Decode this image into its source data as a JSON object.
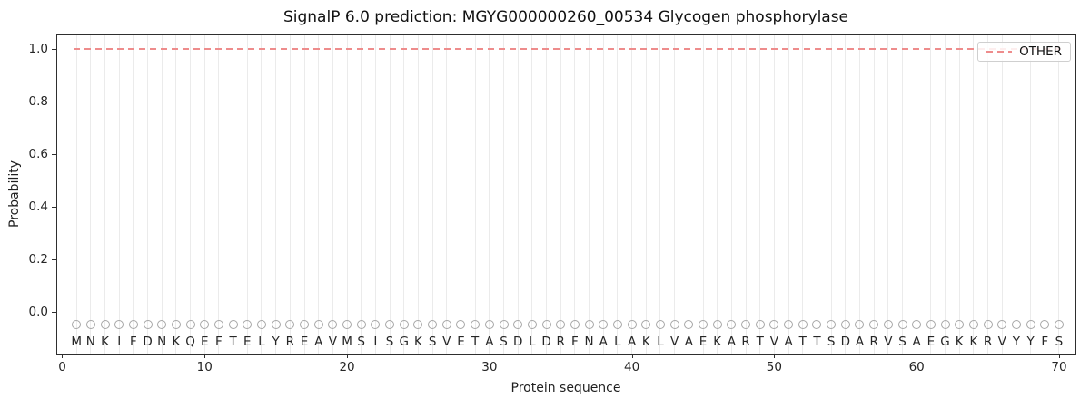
{
  "chart_data": {
    "type": "line",
    "title": "SignalP 6.0 prediction: MGYG000000260_00534 Glycogen phosphorylase",
    "xlabel": "Protein sequence",
    "ylabel": "Probability",
    "xticks": [
      0,
      10,
      20,
      30,
      40,
      50,
      60,
      70
    ],
    "yticks": [
      0.0,
      0.2,
      0.4,
      0.6,
      0.8,
      1.0
    ],
    "xlim": [
      -0.35,
      71.15
    ],
    "ylim": [
      -0.16,
      1.05
    ],
    "grid": {
      "vertical_line_per_residue": true,
      "color": "#ebebeb",
      "horizontal": false
    },
    "legend": {
      "position": "upper-right",
      "entries": [
        {
          "label": "OTHER",
          "line_style": "dashed",
          "color": "#ee8c8c"
        }
      ]
    },
    "series": [
      {
        "name": "OTHER",
        "line_style": "dashed",
        "color": "#ee8c8c",
        "x_start": 1,
        "x_end": 70,
        "y_constant": 1.0,
        "description": "constant probability 1.0 across all 70 residues"
      }
    ],
    "sequence": {
      "residues": "MNKIFDNKQEFTELYREAVMSISGKSVETASDLDRFNALAKLVAEKARTVATTSDARVSAEGKKRVYYFS",
      "n_residues": 70,
      "position_start": 1,
      "position_end": 70,
      "marker": {
        "shape": "open-circle",
        "y": -0.05,
        "color": "#a6a6a6"
      },
      "letter_y": -0.115,
      "letter_color": "#262626"
    },
    "colors": {
      "spine": "#2e2e2e",
      "background": "#ffffff",
      "grid": "#ebebeb",
      "other_line": "#ee8c8c"
    }
  }
}
